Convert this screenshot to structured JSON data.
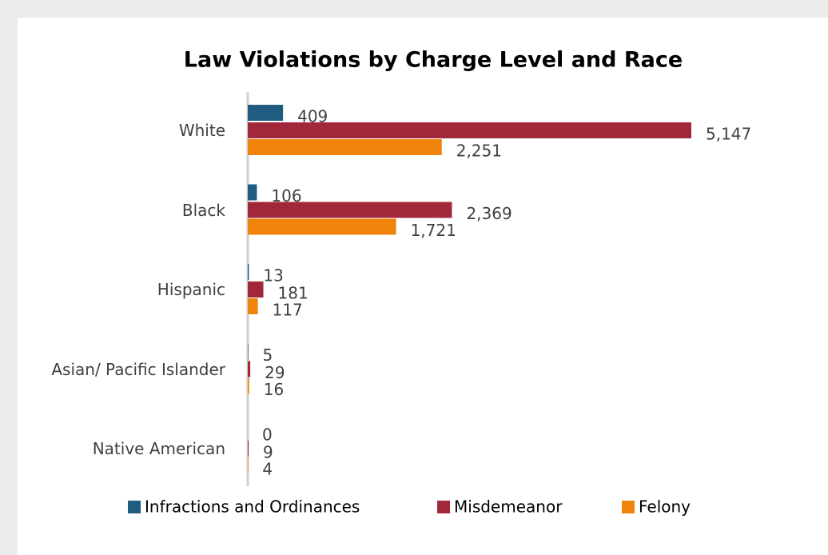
{
  "chart_data": {
    "type": "hbar",
    "title": "Law Violations by Charge Level and Race",
    "categories": [
      "White",
      "Black",
      "Hispanic",
      "Asian/ Pacific Islander",
      "Native American"
    ],
    "series": [
      {
        "name": "Infractions and Ordinances",
        "color": "#1f5c80",
        "values": [
          409,
          106,
          13,
          5,
          0
        ],
        "value_labels": [
          "409",
          "106",
          "13",
          "5",
          "0"
        ]
      },
      {
        "name": "Misdemeanor",
        "color": "#a0283a",
        "values": [
          5147,
          2369,
          181,
          29,
          9
        ],
        "value_labels": [
          "5,147",
          "2,369",
          "181",
          "29",
          "9"
        ]
      },
      {
        "name": "Felony",
        "color": "#f0830a",
        "values": [
          2251,
          1721,
          117,
          16,
          4
        ],
        "value_labels": [
          "2,251",
          "1,721",
          "117",
          "16",
          "4"
        ]
      }
    ]
  }
}
